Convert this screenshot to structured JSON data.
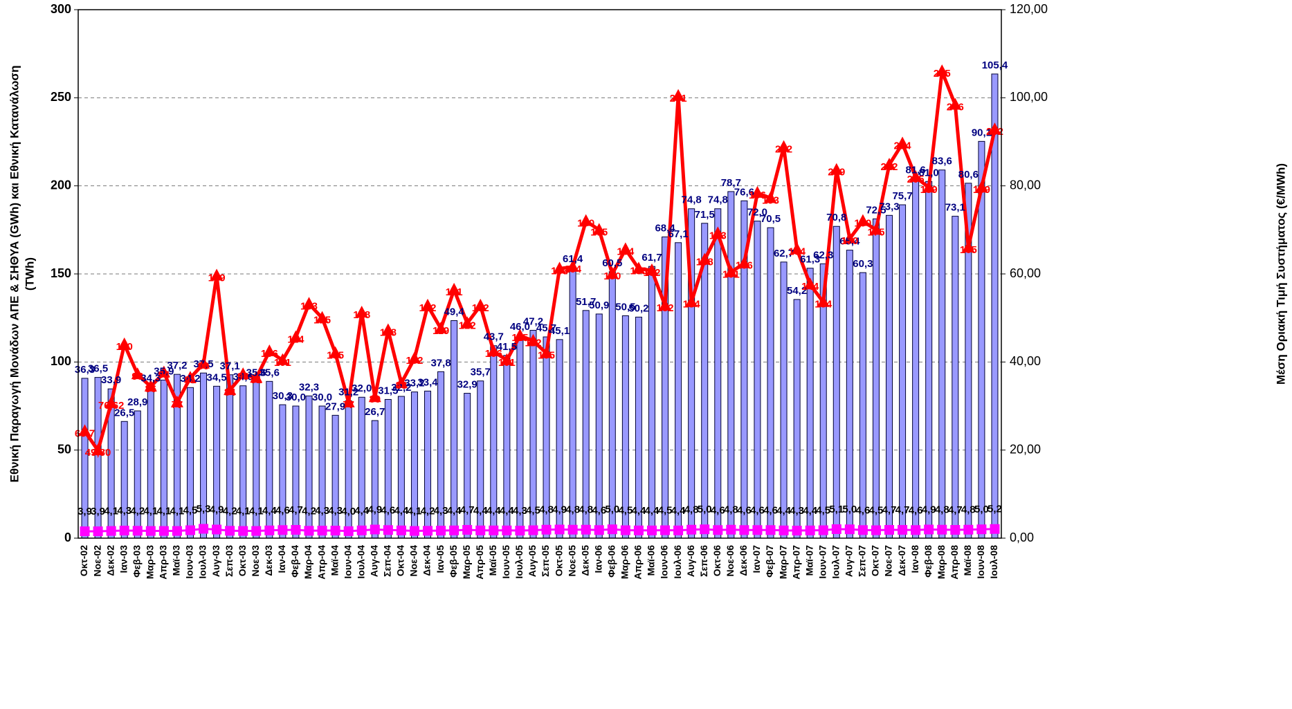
{
  "chart_data": {
    "type": "bar",
    "ylabel": [
      "Εθνική Παραγωγή Μονάδων ΑΠΕ & ΣΗΘΥΑ (GWh) και Εθνική Κατανάλωση",
      "(TWh)"
    ],
    "y2label": "Μέση Οριακή Τιμή Συστήματος (€/MWh)",
    "categories": [
      "Οκτ-02",
      "Νοε-02",
      "Δεκ-02",
      "Ιαν-03",
      "Φεβ-03",
      "Μαρ-03",
      "Απρ-03",
      "Μαϊ-03",
      "Ιουν-03",
      "Ιουλ-03",
      "Αυγ-03",
      "Σεπ-03",
      "Οκτ-03",
      "Νοε-03",
      "Δεκ-03",
      "Ιαν-04",
      "Φεβ-04",
      "Μαρ-04",
      "Απρ-04",
      "Μαϊ-04",
      "Ιουν-04",
      "Ιουλ-04",
      "Αυγ-04",
      "Σεπ-04",
      "Οκτ-04",
      "Νοε-04",
      "Δεκ-04",
      "Ιαν-05",
      "Φεβ-05",
      "Μαρ-05",
      "Απρ-05",
      "Μαϊ-05",
      "Ιουν-05",
      "Ιουλ-05",
      "Αυγ-05",
      "Σεπ-05",
      "Οκτ-05",
      "Νοε-05",
      "Δεκ-05",
      "Ιαν-06",
      "Φεβ-06",
      "Μαρ-06",
      "Απρ-06",
      "Μαϊ-06",
      "Ιουν-06",
      "Ιουλ-06",
      "Αυγ-06",
      "Σεπ-06",
      "Οκτ-06",
      "Νοε-06",
      "Δεκ-06",
      "Ιαν-07",
      "Φεβ-07",
      "Μαρ-07",
      "Απρ-07",
      "Μαϊ-07",
      "Ιουν-07",
      "Ιουλ-07",
      "Αυγ-07",
      "Σεπ-07",
      "Οκτ-07",
      "Νοε-07",
      "Δεκ-07",
      "Ιαν-08",
      "Φεβ-08",
      "Μαρ-08",
      "Απρ-08",
      "Μαϊ-08",
      "Ιουν-08",
      "Ιουλ-08"
    ],
    "ylim": [
      0,
      300
    ],
    "yticks": [
      0,
      50,
      100,
      150,
      200,
      250,
      300
    ],
    "y2lim": [
      0,
      120
    ],
    "y2ticks": [
      {
        "value": 0,
        "label": "0,00"
      },
      {
        "value": 20,
        "label": "20,00"
      },
      {
        "value": 40,
        "label": "40,00"
      },
      {
        "value": 60,
        "label": "60,00"
      },
      {
        "value": 80,
        "label": "80,00"
      },
      {
        "value": 100,
        "label": "100,00"
      },
      {
        "value": 120,
        "label": "120,00"
      }
    ],
    "grid": true,
    "series": [
      {
        "type": "bar",
        "axis": "y2",
        "color": "#9999ff",
        "label_color": "#000080",
        "values": [
          36.3,
          36.5,
          33.9,
          26.5,
          28.9,
          34.3,
          35.9,
          37.2,
          34.2,
          37.5,
          34.5,
          37.1,
          34.6,
          35.6,
          35.6,
          30.3,
          30.0,
          32.3,
          30.0,
          27.9,
          31.2,
          32.0,
          26.7,
          31.5,
          32.2,
          33.2,
          33.4,
          37.8,
          49.4,
          32.9,
          35.7,
          43.7,
          41.5,
          46.0,
          47.2,
          45.7,
          45.1,
          61.4,
          51.7,
          50.9,
          60.5,
          50.5,
          50.2,
          61.7,
          68.4,
          67.1,
          74.8,
          71.5,
          74.8,
          78.7,
          76.6,
          72.0,
          70.5,
          62.7,
          54.2,
          61.3,
          62.3,
          70.8,
          65.4,
          60.3,
          72.5,
          73.3,
          75.7,
          81.6,
          81.0,
          83.6,
          73.1,
          80.6,
          90.1,
          105.4
        ],
        "value_labels": [
          "36,3",
          "36,5",
          "33,9",
          "26,5",
          "28,9",
          "34,3",
          "35,9",
          "37,2",
          "34,2",
          "37,5",
          "34,5",
          "37,1",
          "34,6",
          "35,6",
          "35,6",
          "30,3",
          "30,0",
          "32,3",
          "30,0",
          "27,9",
          "31,2",
          "32,0",
          "26,7",
          "31,5",
          "32,2",
          "33,2",
          "33,4",
          "37,8",
          "49,4",
          "32,9",
          "35,7",
          "43,7",
          "41,5",
          "46,0",
          "47,2",
          "45,7",
          "45,1",
          "61,4",
          "51,7",
          "50,9",
          "60,5",
          "50,5",
          "50,2",
          "61,7",
          "68,4",
          "67,1",
          "74,8",
          "71,5",
          "74,8",
          "78,7",
          "76,6",
          "72,0",
          "70,5",
          "62,7",
          "54,2",
          "61,3",
          "62,3",
          "70,8",
          "65,4",
          "60,3",
          "72,5",
          "73,3",
          "75,7",
          "81,6",
          "81,0",
          "83,6",
          "73,1",
          "80,6",
          "90,1",
          "105,4"
        ]
      },
      {
        "type": "line",
        "marker": "triangle",
        "color": "#ff0000",
        "label_color": "#ff0000",
        "values": [
          60.7,
          49.8,
          76.62,
          110,
          93,
          86,
          94,
          77,
          91,
          99,
          149,
          84,
          93,
          91,
          106,
          101,
          114,
          133,
          125,
          105,
          77,
          128,
          80,
          118,
          88,
          102,
          132,
          119,
          141,
          122,
          132,
          106,
          101,
          115,
          112,
          105,
          153,
          154,
          180,
          175,
          150,
          164,
          153,
          152,
          132,
          251,
          134,
          158,
          173,
          151,
          156,
          196,
          193,
          222,
          164,
          144,
          134,
          209,
          170,
          180,
          175,
          212,
          224,
          205,
          199,
          265,
          246,
          165,
          199,
          232
        ],
        "value_labels": [
          "60,7",
          "49,80",
          "76,62",
          "110",
          "93",
          "86",
          "94",
          "77",
          "91",
          "99",
          "149",
          "84",
          "93",
          "91",
          "106",
          "101",
          "114",
          "133",
          "125",
          "105",
          "77",
          "128",
          "80",
          "118",
          "88",
          "102",
          "132",
          "119",
          "141",
          "122",
          "132",
          "106",
          "101",
          "115",
          "112",
          "105",
          "153",
          "154",
          "180",
          "175",
          "150",
          "164",
          "153",
          "152",
          "132",
          "251",
          "134",
          "158",
          "173",
          "151",
          "156",
          "196",
          "193",
          "222",
          "164",
          "144",
          "134",
          "209",
          "170",
          "180",
          "175",
          "212",
          "224",
          "205",
          "199",
          "265",
          "246",
          "165",
          "199",
          "232"
        ]
      },
      {
        "type": "line",
        "marker": "square",
        "color": "#ff00ff",
        "label_color": "#000000",
        "values": [
          3.9,
          3.9,
          4.1,
          4.3,
          4.2,
          4.1,
          4.1,
          4.1,
          4.5,
          5.3,
          4.9,
          4.2,
          4.1,
          4.1,
          4.4,
          4.6,
          4.7,
          4.2,
          4.3,
          4.3,
          4.0,
          4.4,
          4.9,
          4.6,
          4.4,
          4.1,
          4.2,
          4.3,
          4.4,
          4.7,
          4.4,
          4.4,
          4.4,
          4.3,
          4.5,
          4.8,
          4.9,
          4.8,
          4.8,
          4.6,
          5.0,
          4.5,
          4.4,
          4.4,
          4.5,
          4.4,
          4.8,
          5.0,
          4.6,
          4.8,
          4.6,
          4.6,
          4.6,
          4.4,
          4.3,
          4.4,
          4.5,
          5.1,
          5.0,
          4.6,
          4.5,
          4.7,
          4.7,
          4.6,
          4.9,
          4.8,
          4.7,
          4.8,
          5.0,
          5.2
        ],
        "value_labels": [
          "3,9",
          "3,9",
          "4,1",
          "4,3",
          "4,2",
          "4,1",
          "4,1",
          "4,1",
          "4,5",
          "5,3",
          "4,9",
          "4,2",
          "4,1",
          "4,1",
          "4,4",
          "4,6",
          "4,7",
          "4,2",
          "4,3",
          "4,3",
          "4,0",
          "4,4",
          "4,9",
          "4,6",
          "4,4",
          "4,1",
          "4,2",
          "4,3",
          "4,4",
          "4,7",
          "4,4",
          "4,4",
          "4,4",
          "4,3",
          "4,5",
          "4,8",
          "4,9",
          "4,8",
          "4,8",
          "4,6",
          "5,0",
          "4,5",
          "4,4",
          "4,4",
          "4,5",
          "4,4",
          "4,8",
          "5,0",
          "4,6",
          "4,8",
          "4,6",
          "4,6",
          "4,6",
          "4,4",
          "4,3",
          "4,4",
          "4,5",
          "5,1",
          "5,0",
          "4,6",
          "4,5",
          "4,7",
          "4,7",
          "4,6",
          "4,9",
          "4,8",
          "4,7",
          "4,8",
          "5,0",
          "5,2"
        ]
      }
    ]
  }
}
